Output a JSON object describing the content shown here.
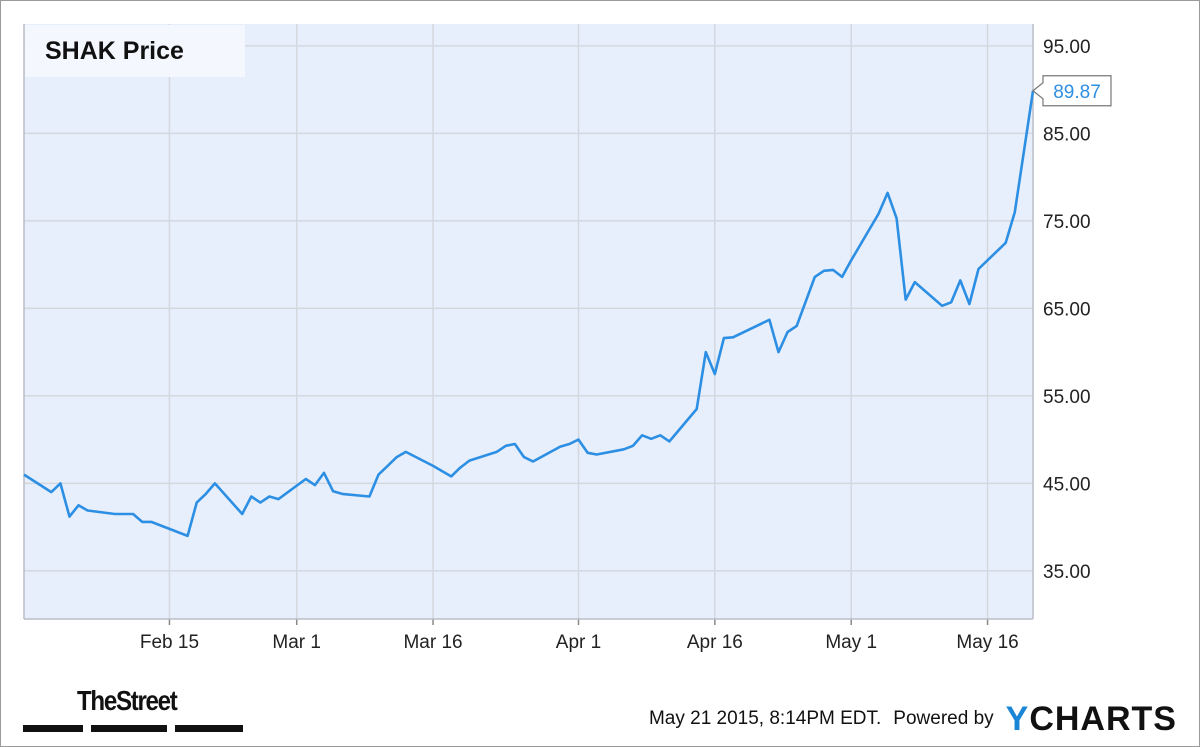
{
  "title": "SHAK Price",
  "footer": {
    "timestamp": "May 21 2015, 8:14PM EDT.",
    "powered_by": "Powered by",
    "brand_y": "Y",
    "brand_rest": "CHARTS",
    "publisher_logo": "TheStreet"
  },
  "colors": {
    "line": "#2d8fe3",
    "plot_bg": "#e8effc",
    "grid": "#d3d7de",
    "label_box": "#2d8fe3"
  },
  "chart_data": {
    "type": "line",
    "title": "SHAK Price",
    "xlabel": "",
    "ylabel": "",
    "ylim": [
      29.5,
      97.5
    ],
    "y_ticks": [
      35,
      45,
      55,
      65,
      75,
      85,
      95
    ],
    "y_tick_labels": [
      "35.00",
      "45.00",
      "55.00",
      "65.00",
      "75.00",
      "85.00",
      "95.00"
    ],
    "x_ticks": [
      {
        "label": "Feb 15",
        "date": "2015-02-15"
      },
      {
        "label": "Mar 1",
        "date": "2015-03-01"
      },
      {
        "label": "Mar 16",
        "date": "2015-03-16"
      },
      {
        "label": "Apr 1",
        "date": "2015-04-01"
      },
      {
        "label": "Apr 16",
        "date": "2015-04-16"
      },
      {
        "label": "May 1",
        "date": "2015-05-01"
      },
      {
        "label": "May 16",
        "date": "2015-05-16"
      }
    ],
    "x_range": [
      "2015-01-30",
      "2015-05-21"
    ],
    "grid": true,
    "last_value_label": "89.87",
    "series": [
      {
        "name": "",
        "points": [
          [
            "2015-01-30",
            46.0
          ],
          [
            "2015-02-02",
            44.0
          ],
          [
            "2015-02-03",
            45.0
          ],
          [
            "2015-02-04",
            41.2
          ],
          [
            "2015-02-05",
            42.5
          ],
          [
            "2015-02-06",
            41.9
          ],
          [
            "2015-02-09",
            41.5
          ],
          [
            "2015-02-10",
            41.5
          ],
          [
            "2015-02-11",
            41.5
          ],
          [
            "2015-02-12",
            40.6
          ],
          [
            "2015-02-13",
            40.6
          ],
          [
            "2015-02-17",
            39.0
          ],
          [
            "2015-02-18",
            42.8
          ],
          [
            "2015-02-19",
            43.8
          ],
          [
            "2015-02-20",
            45.0
          ],
          [
            "2015-02-23",
            41.5
          ],
          [
            "2015-02-24",
            43.5
          ],
          [
            "2015-02-25",
            42.8
          ],
          [
            "2015-02-26",
            43.5
          ],
          [
            "2015-02-27",
            43.2
          ],
          [
            "2015-03-02",
            45.5
          ],
          [
            "2015-03-03",
            44.8
          ],
          [
            "2015-03-04",
            46.2
          ],
          [
            "2015-03-05",
            44.1
          ],
          [
            "2015-03-06",
            43.8
          ],
          [
            "2015-03-09",
            43.5
          ],
          [
            "2015-03-10",
            46.0
          ],
          [
            "2015-03-11",
            47.0
          ],
          [
            "2015-03-12",
            48.0
          ],
          [
            "2015-03-13",
            48.6
          ],
          [
            "2015-03-16",
            47.0
          ],
          [
            "2015-03-17",
            46.4
          ],
          [
            "2015-03-18",
            45.8
          ],
          [
            "2015-03-19",
            46.8
          ],
          [
            "2015-03-20",
            47.6
          ],
          [
            "2015-03-23",
            48.6
          ],
          [
            "2015-03-24",
            49.3
          ],
          [
            "2015-03-25",
            49.5
          ],
          [
            "2015-03-26",
            48.0
          ],
          [
            "2015-03-27",
            47.5
          ],
          [
            "2015-03-30",
            49.2
          ],
          [
            "2015-03-31",
            49.5
          ],
          [
            "2015-04-01",
            50.0
          ],
          [
            "2015-04-02",
            48.5
          ],
          [
            "2015-04-03",
            48.3
          ],
          [
            "2015-04-06",
            48.9
          ],
          [
            "2015-04-07",
            49.3
          ],
          [
            "2015-04-08",
            50.5
          ],
          [
            "2015-04-09",
            50.1
          ],
          [
            "2015-04-10",
            50.5
          ],
          [
            "2015-04-11",
            49.8
          ],
          [
            "2015-04-14",
            53.5
          ],
          [
            "2015-04-15",
            60.0
          ],
          [
            "2015-04-16",
            57.5
          ],
          [
            "2015-04-17",
            61.6
          ],
          [
            "2015-04-18",
            61.7
          ],
          [
            "2015-04-22",
            63.7
          ],
          [
            "2015-04-23",
            60.0
          ],
          [
            "2015-04-24",
            62.3
          ],
          [
            "2015-04-25",
            63.0
          ],
          [
            "2015-04-27",
            68.6
          ],
          [
            "2015-04-28",
            69.3
          ],
          [
            "2015-04-29",
            69.4
          ],
          [
            "2015-04-30",
            68.6
          ],
          [
            "2015-05-01",
            70.5
          ],
          [
            "2015-05-04",
            75.8
          ],
          [
            "2015-05-05",
            78.2
          ],
          [
            "2015-05-06",
            75.3
          ],
          [
            "2015-05-07",
            66.0
          ],
          [
            "2015-05-08",
            68.0
          ],
          [
            "2015-05-11",
            65.3
          ],
          [
            "2015-05-12",
            65.7
          ],
          [
            "2015-05-13",
            68.2
          ],
          [
            "2015-05-14",
            65.5
          ],
          [
            "2015-05-15",
            69.5
          ],
          [
            "2015-05-18",
            72.5
          ],
          [
            "2015-05-19",
            76.0
          ],
          [
            "2015-05-21",
            89.87
          ]
        ]
      }
    ]
  }
}
